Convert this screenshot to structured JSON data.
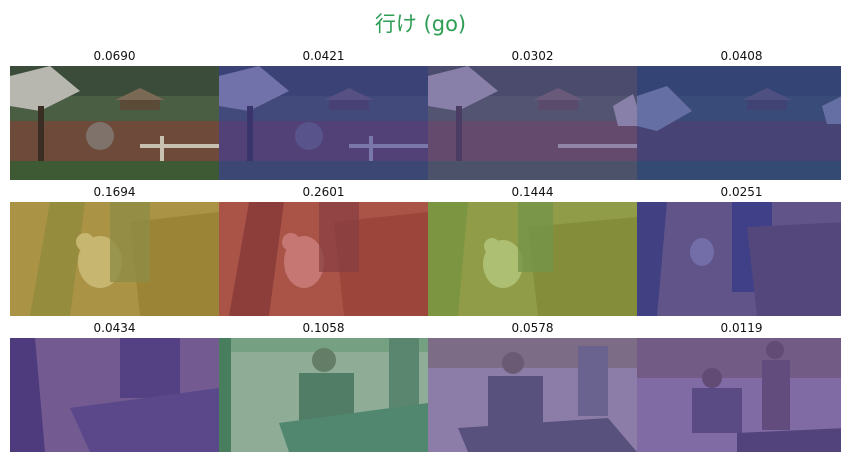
{
  "title": "行け (go)",
  "rows": [
    {
      "scene": "village",
      "cells": [
        {
          "score": "0.0690",
          "tint": "#00000000"
        },
        {
          "score": "0.0421",
          "tint": "#3a3aa8"
        },
        {
          "score": "0.0302",
          "tint": "#5a4aa0"
        },
        {
          "score": "0.0408",
          "tint": "#2f3f9c"
        }
      ]
    },
    {
      "scene": "pig",
      "cells": [
        {
          "score": "0.1694",
          "tint": "#b8a834"
        },
        {
          "score": "0.2601",
          "tint": "#b8353a"
        },
        {
          "score": "0.1444",
          "tint": "#8ab83a"
        },
        {
          "score": "0.0251",
          "tint": "#3a3aa8"
        }
      ]
    },
    {
      "scene": "men",
      "cells": [
        {
          "score": "0.0434",
          "tint": "#5a3ca0"
        },
        {
          "score": "0.1058",
          "tint": "#5aa88a"
        },
        {
          "score": "0.0578",
          "tint": "#6a5aa8"
        },
        {
          "score": "0.0119",
          "tint": "#5a3ca0"
        }
      ]
    }
  ]
}
